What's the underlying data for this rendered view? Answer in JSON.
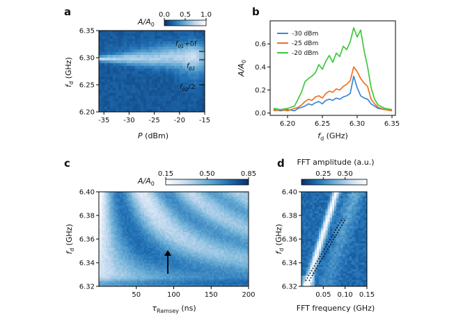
{
  "chart_data": [
    {
      "panel": "a",
      "type": "heatmap",
      "xlabel_symbol": "P",
      "xlabel_unit": "(dBm)",
      "ylabel_symbol": "f",
      "ylabel_sub": "d",
      "ylabel_unit": "(GHz)",
      "x_ticks": [
        -35,
        -30,
        -25,
        -20,
        -15
      ],
      "y_ticks": [
        "6.35",
        "6.30",
        "6.25",
        "6.20"
      ],
      "xlim": [
        -36,
        -15
      ],
      "ylim": [
        6.2,
        6.35
      ],
      "colorbar": {
        "label": "A/A",
        "label_sub": "0",
        "ticks": [
          "0.0",
          "0.5",
          "1.0"
        ],
        "range": [
          0.0,
          1.0
        ],
        "colors": [
          "#08306b",
          "#2171b5",
          "#6baed6",
          "#c6dbef",
          "#ffffff"
        ]
      },
      "annotations": [
        {
          "main": "f",
          "sub": "01",
          "extra": "+δf"
        },
        {
          "main": "f",
          "sub": "01",
          "extra": ""
        },
        {
          "main": "f",
          "sub": "02",
          "extra": "/2"
        }
      ]
    },
    {
      "panel": "b",
      "type": "line",
      "xlabel_symbol": "f",
      "xlabel_sub": "d",
      "xlabel_unit": "(GHz)",
      "ylabel": "A/A",
      "ylabel_sub": "0",
      "x_ticks": [
        "6.20",
        "6.25",
        "6.30",
        "6.35"
      ],
      "y_ticks": [
        "0.0",
        "0.2",
        "0.4",
        "0.6"
      ],
      "xlim": [
        6.175,
        6.355
      ],
      "ylim": [
        -0.02,
        0.8
      ],
      "x": [
        6.18,
        6.19,
        6.2,
        6.21,
        6.215,
        6.22,
        6.225,
        6.23,
        6.235,
        6.24,
        6.245,
        6.25,
        6.255,
        6.26,
        6.265,
        6.27,
        6.275,
        6.28,
        6.285,
        6.29,
        6.295,
        6.3,
        6.305,
        6.31,
        6.315,
        6.32,
        6.325,
        6.33,
        6.34,
        6.35
      ],
      "series": [
        {
          "name": "-30 dBm",
          "color": "#3a86d6",
          "values": [
            0.03,
            0.02,
            0.03,
            0.02,
            0.04,
            0.05,
            0.06,
            0.08,
            0.07,
            0.09,
            0.1,
            0.08,
            0.11,
            0.12,
            0.11,
            0.13,
            0.12,
            0.14,
            0.15,
            0.17,
            0.32,
            0.22,
            0.15,
            0.13,
            0.12,
            0.08,
            0.06,
            0.04,
            0.03,
            0.02
          ]
        },
        {
          "name": "-25 dBm",
          "color": "#f07020",
          "values": [
            0.02,
            0.03,
            0.02,
            0.04,
            0.05,
            0.07,
            0.1,
            0.12,
            0.11,
            0.14,
            0.15,
            0.13,
            0.17,
            0.19,
            0.18,
            0.21,
            0.2,
            0.23,
            0.25,
            0.28,
            0.4,
            0.36,
            0.3,
            0.26,
            0.23,
            0.12,
            0.08,
            0.05,
            0.03,
            0.02
          ]
        },
        {
          "name": "-20 dBm",
          "color": "#3cc83c",
          "values": [
            0.04,
            0.03,
            0.04,
            0.06,
            0.12,
            0.18,
            0.27,
            0.3,
            0.32,
            0.35,
            0.42,
            0.38,
            0.45,
            0.5,
            0.44,
            0.52,
            0.49,
            0.58,
            0.55,
            0.62,
            0.74,
            0.66,
            0.72,
            0.54,
            0.4,
            0.22,
            0.12,
            0.07,
            0.04,
            0.03
          ]
        }
      ]
    },
    {
      "panel": "c",
      "type": "heatmap",
      "xlabel_symbol": "τ",
      "xlabel_sub": "Ramsey",
      "xlabel_unit": "(ns)",
      "ylabel_symbol": "f",
      "ylabel_sub": "d",
      "ylabel_unit": "(GHz)",
      "x_ticks": [
        "50",
        "100",
        "150",
        "200"
      ],
      "y_ticks": [
        "6.40",
        "6.38",
        "6.36",
        "6.34",
        "6.32"
      ],
      "xlim": [
        0,
        200
      ],
      "ylim": [
        6.32,
        6.4
      ],
      "colorbar": {
        "label": "A/A",
        "label_sub": "0",
        "ticks": [
          "0.15",
          "0.50",
          "0.85"
        ],
        "range": [
          0.15,
          0.85
        ],
        "colors": [
          "#ffffff",
          "#c6dbef",
          "#6baed6",
          "#2171b5",
          "#08306b"
        ]
      }
    },
    {
      "panel": "d",
      "type": "heatmap",
      "xlabel": "FFT frequency (GHz)",
      "ylabel_symbol": "f",
      "ylabel_sub": "d",
      "ylabel_unit": "(GHz)",
      "x_ticks": [
        "0.05",
        "0.10",
        "0.15"
      ],
      "y_ticks": [
        "6.40",
        "6.38",
        "6.36",
        "6.34",
        "6.32"
      ],
      "xlim": [
        0.0,
        0.15
      ],
      "ylim": [
        6.32,
        6.4
      ],
      "colorbar": {
        "label": "FFT amplitude (a.u.)",
        "ticks": [
          "0.25",
          "0.50"
        ],
        "range": [
          0.0,
          0.75
        ],
        "colors": [
          "#08306b",
          "#2171b5",
          "#6baed6",
          "#c6dbef",
          "#ffffff"
        ]
      }
    }
  ]
}
